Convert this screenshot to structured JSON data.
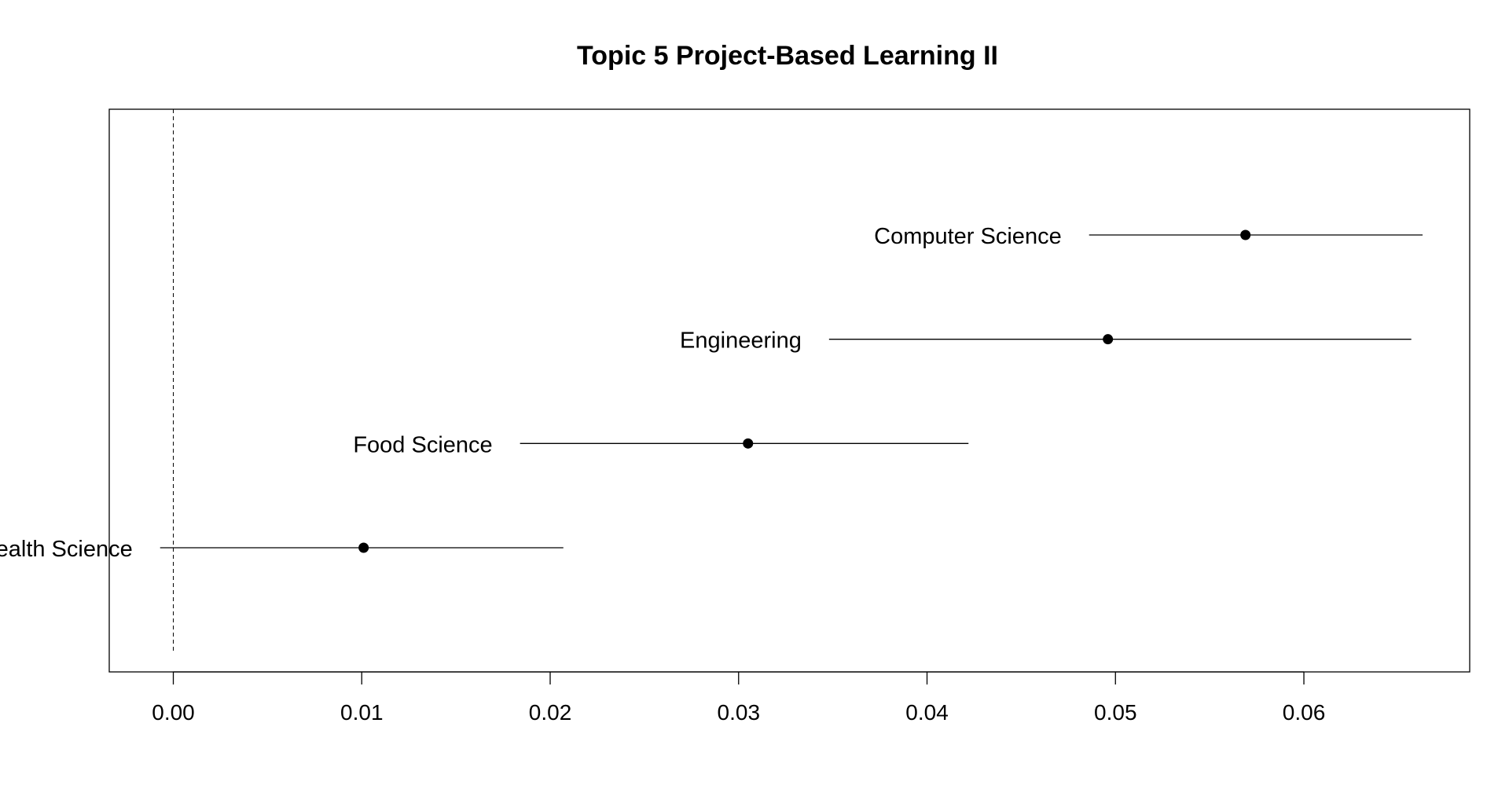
{
  "chart_data": {
    "type": "scatter",
    "title": "Topic 5 Project-Based Learning II",
    "xlabel": "",
    "ylabel": "",
    "xlim": [
      -0.0034,
      0.0688
    ],
    "xticks": [
      "0.00",
      "0.01",
      "0.02",
      "0.03",
      "0.04",
      "0.05",
      "0.06"
    ],
    "tick_values": [
      0,
      0.01,
      0.02,
      0.03,
      0.04,
      0.05,
      0.06
    ],
    "reference_line_x": 0,
    "grid": false,
    "legend": "none",
    "points": [
      {
        "label": "Computer Science",
        "estimate": 0.0569,
        "lower": 0.0486,
        "upper": 0.0663
      },
      {
        "label": "Engineering",
        "estimate": 0.0496,
        "lower": 0.0348,
        "upper": 0.0657
      },
      {
        "label": "Food Science",
        "estimate": 0.0305,
        "lower": 0.0184,
        "upper": 0.0422
      },
      {
        "label": "Health Science",
        "estimate": 0.0101,
        "lower": -0.0007,
        "upper": 0.0207
      }
    ]
  }
}
